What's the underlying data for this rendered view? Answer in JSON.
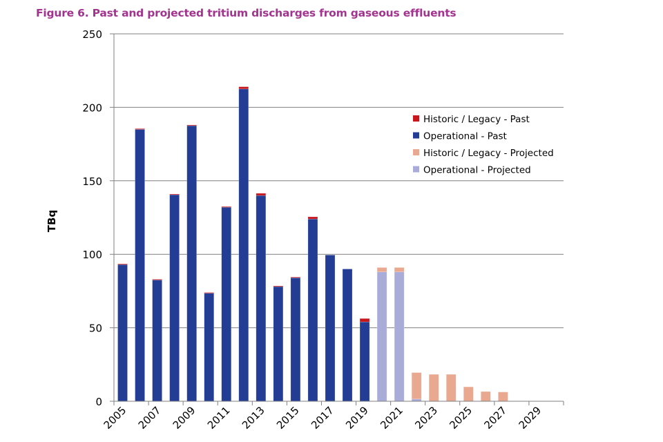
{
  "figure": {
    "title": "Figure 6.  Past and projected tritium discharges from gaseous effluents"
  },
  "chart_data": {
    "type": "bar",
    "stacked": true,
    "title": "Figure 6.  Past and projected tritium discharges from gaseous effluents",
    "xlabel": "",
    "ylabel": "TBq",
    "ylim": [
      0,
      250
    ],
    "yticks": [
      0,
      50,
      100,
      150,
      200,
      250
    ],
    "grid": true,
    "legend_position": "top-right",
    "categories": [
      "2005",
      "2006",
      "2007",
      "2008",
      "2009",
      "2010",
      "2011",
      "2012",
      "2013",
      "2014",
      "2015",
      "2016",
      "2017",
      "2018",
      "2019",
      "2020",
      "2021",
      "2022",
      "2023",
      "2024",
      "2025",
      "2026",
      "2027",
      "2028",
      "2029",
      "2030"
    ],
    "xtick_labels": [
      "2005",
      "2007",
      "2009",
      "2011",
      "2013",
      "2015",
      "2017",
      "2019",
      "2021",
      "2023",
      "2025",
      "2027",
      "2029"
    ],
    "series": [
      {
        "name": "Operational - Past",
        "color": "#233d94",
        "values": [
          93,
          185,
          82.5,
          140.5,
          187.5,
          73.5,
          132,
          212.5,
          140,
          78,
          84,
          124,
          99.5,
          90,
          54,
          0,
          0,
          0,
          0,
          0,
          0,
          0,
          0,
          0,
          0,
          0
        ]
      },
      {
        "name": "Historic / Legacy - Past",
        "color": "#c8161d",
        "values": [
          0.5,
          0.5,
          0.5,
          0.5,
          0.5,
          0.5,
          0.5,
          1.5,
          1.5,
          0.5,
          0.5,
          1.5,
          0,
          0,
          2.3,
          0,
          0,
          0,
          0,
          0,
          0,
          0,
          0,
          0,
          0,
          0
        ]
      },
      {
        "name": "Operational - Projected",
        "color": "#a9acd9",
        "values": [
          0,
          0,
          0,
          0,
          0,
          0,
          0,
          0,
          0,
          0,
          0,
          0,
          0,
          0,
          0,
          88,
          88,
          1.5,
          0,
          0,
          0,
          0,
          0,
          0,
          0,
          0
        ]
      },
      {
        "name": "Historic / Legacy - Projected",
        "color": "#e9a890",
        "values": [
          0,
          0,
          0,
          0,
          0,
          0,
          0,
          0,
          0,
          0,
          0,
          0,
          0,
          0,
          0,
          3,
          3,
          18,
          18.3,
          18.3,
          9.8,
          6.6,
          6.3,
          0,
          0,
          0
        ]
      }
    ],
    "legend": [
      {
        "label": "Historic / Legacy - Past",
        "color": "#c8161d"
      },
      {
        "label": "Operational - Past",
        "color": "#233d94"
      },
      {
        "label": "Historic / Legacy - Projected",
        "color": "#e9a890"
      },
      {
        "label": "Operational - Projected",
        "color": "#a9acd9"
      }
    ]
  }
}
